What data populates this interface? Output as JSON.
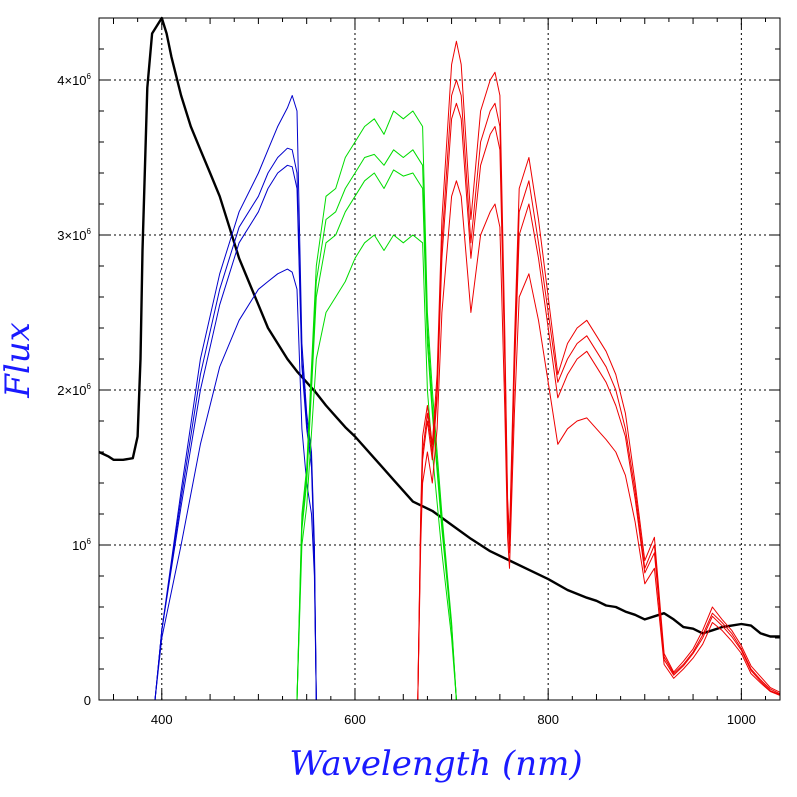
{
  "chart_data": {
    "type": "line",
    "title": "",
    "xlabel": "Wavelength (nm)",
    "ylabel": "Flux",
    "xlim": [
      335,
      1040
    ],
    "ylim": [
      0,
      4400000
    ],
    "grid": true,
    "x_ticks": [
      {
        "value": 400,
        "label": "400"
      },
      {
        "value": 600,
        "label": "600"
      },
      {
        "value": 800,
        "label": "800"
      },
      {
        "value": 1000,
        "label": "1000"
      }
    ],
    "y_ticks": [
      {
        "value": 0,
        "label": "0",
        "base": "",
        "exp": ""
      },
      {
        "value": 1000000,
        "label": "",
        "base": "10",
        "exp": "6"
      },
      {
        "value": 2000000,
        "label": "",
        "base": "2×10",
        "exp": "6"
      },
      {
        "value": 3000000,
        "label": "",
        "base": "3×10",
        "exp": "6"
      },
      {
        "value": 4000000,
        "label": "",
        "base": "4×10",
        "exp": "6"
      }
    ],
    "series": [
      {
        "color": "#000000",
        "x": [
          335,
          345,
          350,
          360,
          370,
          375,
          378,
          380,
          385,
          390,
          400,
          405,
          410,
          420,
          430,
          440,
          450,
          460,
          470,
          480,
          490,
          500,
          510,
          520,
          530,
          540,
          550,
          560,
          570,
          580,
          590,
          600,
          620,
          640,
          660,
          680,
          700,
          720,
          740,
          760,
          780,
          800,
          820,
          840,
          850,
          860,
          870,
          880,
          890,
          900,
          910,
          920,
          930,
          940,
          950,
          960,
          970,
          980,
          990,
          1000,
          1010,
          1020,
          1030,
          1040
        ],
        "y": [
          1600000,
          1570000,
          1550000,
          1550000,
          1560000,
          1700000,
          2200000,
          2900000,
          3950000,
          4300000,
          4400000,
          4300000,
          4150000,
          3900000,
          3700000,
          3550000,
          3400000,
          3250000,
          3050000,
          2850000,
          2700000,
          2550000,
          2400000,
          2300000,
          2200000,
          2120000,
          2050000,
          1980000,
          1900000,
          1830000,
          1760000,
          1700000,
          1560000,
          1420000,
          1280000,
          1220000,
          1130000,
          1040000,
          960000,
          900000,
          840000,
          780000,
          710000,
          660000,
          640000,
          610000,
          600000,
          570000,
          550000,
          520000,
          540000,
          560000,
          520000,
          470000,
          460000,
          430000,
          450000,
          470000,
          480000,
          490000,
          480000,
          430000,
          410000,
          410000
        ]
      },
      {
        "color": "#0000cc",
        "x": [
          393,
          400,
          420,
          440,
          460,
          480,
          500,
          510,
          520,
          530,
          535,
          540,
          545,
          550,
          555,
          558,
          560
        ],
        "y": [
          0,
          450000,
          1350000,
          2200000,
          2750000,
          3150000,
          3400000,
          3550000,
          3700000,
          3820000,
          3900000,
          3800000,
          2300000,
          1850000,
          1600000,
          1000000,
          0
        ]
      },
      {
        "color": "#0000cc",
        "x": [
          393,
          400,
          420,
          440,
          460,
          480,
          500,
          510,
          520,
          530,
          535,
          540,
          545,
          550,
          555,
          558,
          560
        ],
        "y": [
          0,
          450000,
          1300000,
          2100000,
          2650000,
          3050000,
          3250000,
          3400000,
          3500000,
          3560000,
          3550000,
          3400000,
          2200000,
          1800000,
          1550000,
          950000,
          0
        ]
      },
      {
        "color": "#0000cc",
        "x": [
          393,
          400,
          420,
          440,
          460,
          480,
          500,
          510,
          520,
          530,
          535,
          540,
          545,
          550,
          555,
          558,
          560
        ],
        "y": [
          0,
          450000,
          1250000,
          2000000,
          2550000,
          2950000,
          3150000,
          3300000,
          3400000,
          3450000,
          3440000,
          3300000,
          2150000,
          1750000,
          1500000,
          900000,
          0
        ]
      },
      {
        "color": "#0000cc",
        "x": [
          393,
          400,
          420,
          440,
          460,
          480,
          500,
          510,
          520,
          530,
          535,
          540,
          545,
          550,
          555,
          558,
          560
        ],
        "y": [
          0,
          400000,
          1000000,
          1650000,
          2150000,
          2450000,
          2650000,
          2700000,
          2750000,
          2780000,
          2760000,
          2650000,
          1750000,
          1400000,
          1200000,
          800000,
          0
        ]
      },
      {
        "color": "#00dd00",
        "x": [
          540,
          545,
          550,
          560,
          570,
          580,
          590,
          600,
          610,
          620,
          630,
          640,
          650,
          660,
          670,
          675,
          680,
          690,
          700,
          705
        ],
        "y": [
          0,
          1200000,
          1500000,
          2800000,
          3250000,
          3300000,
          3500000,
          3600000,
          3700000,
          3750000,
          3650000,
          3800000,
          3750000,
          3800000,
          3700000,
          2500000,
          2000000,
          1200000,
          500000,
          0
        ]
      },
      {
        "color": "#00dd00",
        "x": [
          540,
          545,
          550,
          560,
          570,
          580,
          590,
          600,
          610,
          620,
          630,
          640,
          650,
          660,
          670,
          675,
          680,
          690,
          700,
          705
        ],
        "y": [
          0,
          1150000,
          1450000,
          2700000,
          3100000,
          3150000,
          3300000,
          3400000,
          3500000,
          3520000,
          3450000,
          3550000,
          3500000,
          3550000,
          3450000,
          2400000,
          1900000,
          1150000,
          480000,
          0
        ]
      },
      {
        "color": "#00dd00",
        "x": [
          540,
          545,
          550,
          560,
          570,
          580,
          590,
          600,
          610,
          620,
          630,
          640,
          650,
          660,
          670,
          675,
          680,
          690,
          700,
          705
        ],
        "y": [
          0,
          1100000,
          1400000,
          2600000,
          2950000,
          3000000,
          3150000,
          3250000,
          3350000,
          3400000,
          3300000,
          3420000,
          3380000,
          3400000,
          3300000,
          2300000,
          1850000,
          1100000,
          460000,
          0
        ]
      },
      {
        "color": "#00dd00",
        "x": [
          540,
          545,
          550,
          560,
          570,
          580,
          590,
          600,
          610,
          620,
          630,
          640,
          650,
          660,
          670,
          675,
          680,
          690,
          700,
          705
        ],
        "y": [
          0,
          1000000,
          1250000,
          2200000,
          2500000,
          2600000,
          2700000,
          2850000,
          2950000,
          3000000,
          2900000,
          3000000,
          2950000,
          3000000,
          2950000,
          2000000,
          1600000,
          950000,
          400000,
          0
        ]
      },
      {
        "color": "#ee0000",
        "x": [
          665,
          668,
          670,
          675,
          680,
          685,
          690,
          700,
          705,
          710,
          720,
          730,
          740,
          745,
          750,
          755,
          758,
          760,
          765,
          770,
          780,
          790,
          800,
          810,
          820,
          830,
          840,
          850,
          860,
          870,
          880,
          890,
          900,
          910,
          920,
          930,
          940,
          950,
          960,
          970,
          980,
          990,
          1000,
          1010,
          1020,
          1030,
          1040
        ],
        "y": [
          0,
          1200000,
          1700000,
          1900000,
          1650000,
          2100000,
          3100000,
          4100000,
          4250000,
          4100000,
          3100000,
          3800000,
          4000000,
          4050000,
          3900000,
          2400000,
          1300000,
          1050000,
          2300000,
          3300000,
          3500000,
          3100000,
          2600000,
          2100000,
          2300000,
          2400000,
          2450000,
          2350000,
          2250000,
          2100000,
          1850000,
          1400000,
          900000,
          1050000,
          300000,
          180000,
          250000,
          330000,
          450000,
          600000,
          520000,
          450000,
          350000,
          220000,
          150000,
          80000,
          50000
        ]
      },
      {
        "color": "#ee0000",
        "x": [
          665,
          668,
          670,
          675,
          680,
          685,
          690,
          700,
          705,
          710,
          720,
          730,
          740,
          745,
          750,
          755,
          758,
          760,
          765,
          770,
          780,
          790,
          800,
          810,
          820,
          830,
          840,
          850,
          860,
          870,
          880,
          890,
          900,
          910,
          920,
          930,
          940,
          950,
          960,
          970,
          980,
          990,
          1000,
          1010,
          1020,
          1030,
          1040
        ],
        "y": [
          0,
          1150000,
          1600000,
          1850000,
          1600000,
          2000000,
          2950000,
          3900000,
          4000000,
          3900000,
          2950000,
          3600000,
          3800000,
          3850000,
          3700000,
          2300000,
          1250000,
          1000000,
          2200000,
          3150000,
          3350000,
          2950000,
          2500000,
          2050000,
          2200000,
          2300000,
          2350000,
          2250000,
          2150000,
          2000000,
          1750000,
          1350000,
          850000,
          1000000,
          280000,
          170000,
          230000,
          310000,
          420000,
          560000,
          500000,
          430000,
          330000,
          200000,
          130000,
          70000,
          40000
        ]
      },
      {
        "color": "#ee0000",
        "x": [
          665,
          668,
          670,
          675,
          680,
          685,
          690,
          700,
          705,
          710,
          720,
          730,
          740,
          745,
          750,
          755,
          758,
          760,
          765,
          770,
          780,
          790,
          800,
          810,
          820,
          830,
          840,
          850,
          860,
          870,
          880,
          890,
          900,
          910,
          920,
          930,
          940,
          950,
          960,
          970,
          980,
          990,
          1000,
          1010,
          1020,
          1030,
          1040
        ],
        "y": [
          0,
          1100000,
          1550000,
          1800000,
          1550000,
          1950000,
          2850000,
          3750000,
          3850000,
          3750000,
          2850000,
          3450000,
          3650000,
          3700000,
          3550000,
          2200000,
          1200000,
          950000,
          2100000,
          3000000,
          3200000,
          2850000,
          2400000,
          1950000,
          2100000,
          2200000,
          2250000,
          2150000,
          2050000,
          1900000,
          1700000,
          1300000,
          820000,
          950000,
          260000,
          160000,
          220000,
          300000,
          400000,
          540000,
          480000,
          410000,
          320000,
          190000,
          120000,
          60000,
          35000
        ]
      },
      {
        "color": "#ee0000",
        "x": [
          665,
          668,
          670,
          675,
          680,
          685,
          690,
          700,
          705,
          710,
          720,
          730,
          740,
          745,
          750,
          755,
          758,
          760,
          765,
          770,
          780,
          790,
          800,
          810,
          820,
          830,
          840,
          850,
          860,
          870,
          880,
          890,
          900,
          910,
          920,
          930,
          940,
          950,
          960,
          970,
          980,
          990,
          1000,
          1010,
          1020,
          1030,
          1040
        ],
        "y": [
          0,
          1000000,
          1400000,
          1600000,
          1400000,
          1750000,
          2500000,
          3250000,
          3350000,
          3250000,
          2500000,
          3000000,
          3150000,
          3200000,
          3050000,
          1900000,
          1050000,
          850000,
          1850000,
          2600000,
          2750000,
          2450000,
          2050000,
          1650000,
          1750000,
          1800000,
          1820000,
          1750000,
          1680000,
          1600000,
          1450000,
          1150000,
          750000,
          850000,
          230000,
          140000,
          200000,
          270000,
          360000,
          500000,
          450000,
          380000,
          300000,
          170000,
          110000,
          55000,
          30000
        ]
      }
    ]
  }
}
